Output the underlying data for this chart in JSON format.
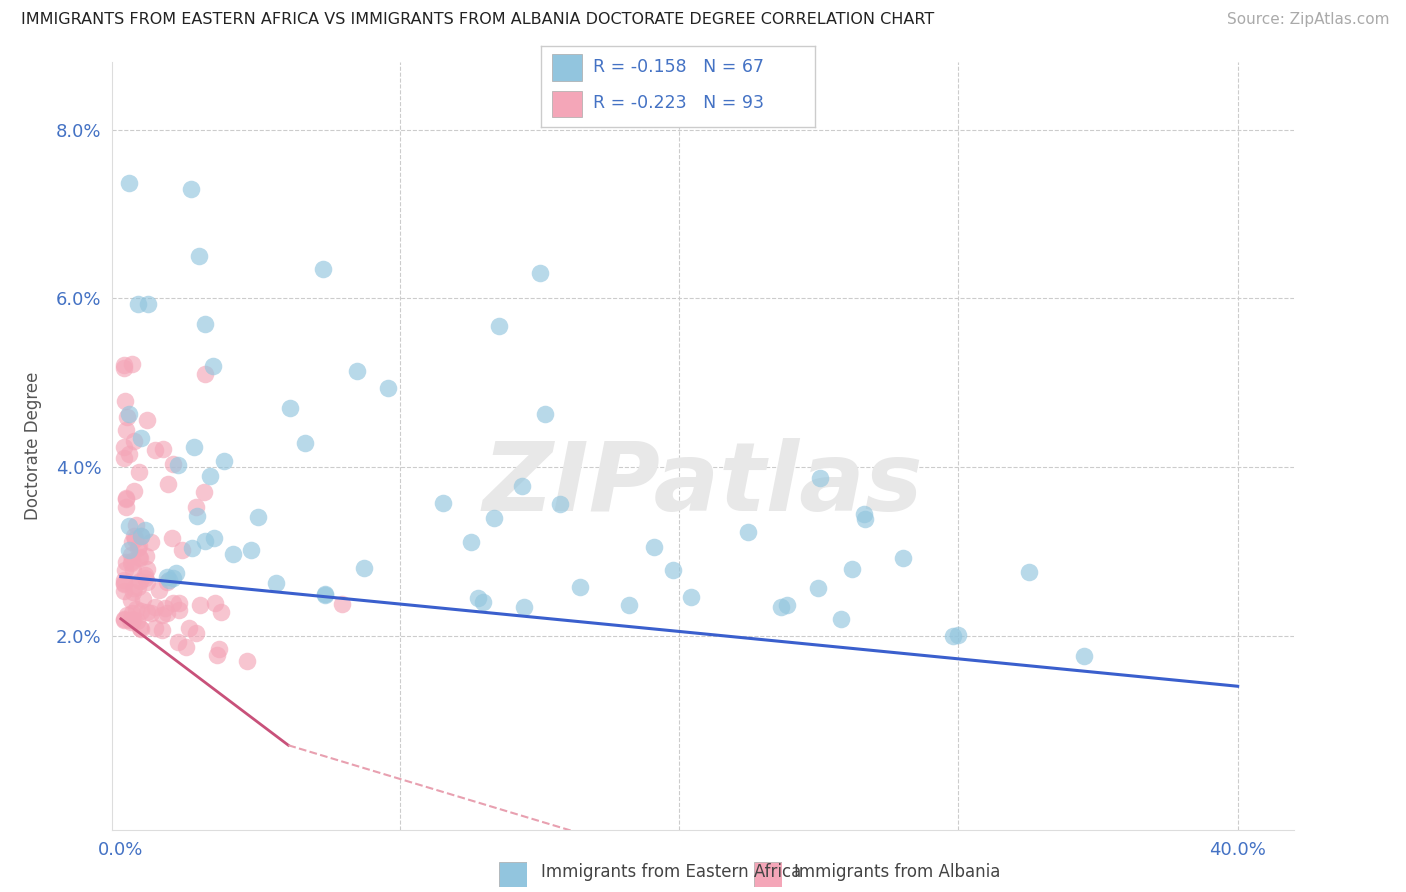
{
  "title": "IMMIGRANTS FROM EASTERN AFRICA VS IMMIGRANTS FROM ALBANIA DOCTORATE DEGREE CORRELATION CHART",
  "source": "Source: ZipAtlas.com",
  "ylabel": "Doctorate Degree",
  "legend_blue_r": "R = -0.158",
  "legend_blue_n": "N = 67",
  "legend_pink_r": "R = -0.223",
  "legend_pink_n": "N = 93",
  "color_blue": "#92C5DE",
  "color_pink": "#F4A6B8",
  "color_blue_line": "#3A5FCD",
  "color_pink_line": "#C8517A",
  "color_pink_dash": "#E8A0B0",
  "color_axis_labels": "#4472C4",
  "color_grid": "#cccccc",
  "xlim": [
    -0.003,
    0.42
  ],
  "ylim": [
    -0.003,
    0.088
  ],
  "y_ticks": [
    0.0,
    0.02,
    0.04,
    0.06,
    0.08
  ],
  "x_ticks": [
    0.0,
    0.1,
    0.2,
    0.3,
    0.4
  ],
  "n_blue": 67,
  "n_pink": 93,
  "seed_blue": 12,
  "seed_pink": 77,
  "watermark": "ZIPatlas"
}
